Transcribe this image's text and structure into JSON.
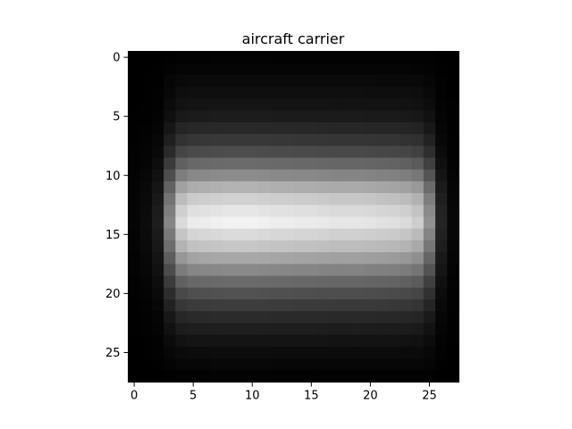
{
  "chart_data": {
    "type": "heatmap",
    "title": "aircraft carrier",
    "xlabel": "",
    "ylabel": "",
    "colormap": "gray",
    "xlim": [
      -0.5,
      27.5
    ],
    "ylim": [
      27.5,
      -0.5
    ],
    "xticks": [
      0,
      5,
      10,
      15,
      20,
      25
    ],
    "yticks": [
      0,
      5,
      10,
      15,
      20,
      25
    ],
    "grid": false,
    "rows": 28,
    "cols": 28,
    "row_profile": [
      0.01,
      0.02,
      0.04,
      0.06,
      0.08,
      0.11,
      0.16,
      0.22,
      0.3,
      0.42,
      0.55,
      0.7,
      0.82,
      0.9,
      0.95,
      0.86,
      0.78,
      0.66,
      0.54,
      0.42,
      0.32,
      0.24,
      0.17,
      0.12,
      0.08,
      0.05,
      0.03,
      0.01
    ],
    "col_profile": [
      0.02,
      0.05,
      0.12,
      0.55,
      0.9,
      0.97,
      0.98,
      0.99,
      1.0,
      1.0,
      1.0,
      0.99,
      0.98,
      0.98,
      0.97,
      0.97,
      0.96,
      0.95,
      0.95,
      0.95,
      0.94,
      0.93,
      0.92,
      0.9,
      0.85,
      0.6,
      0.15,
      0.03
    ]
  }
}
